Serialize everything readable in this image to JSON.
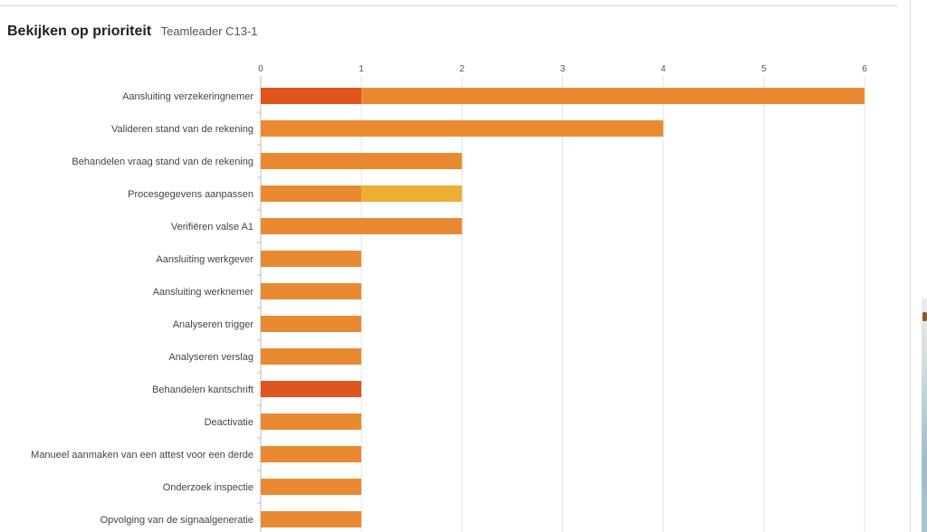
{
  "header": {
    "title": "Bekijken op prioriteit",
    "subtitle": "Teamleader C13-1"
  },
  "chart_data": {
    "type": "bar",
    "orientation": "horizontal",
    "stacked": true,
    "xlim": [
      0,
      6
    ],
    "x_ticks": [
      "0",
      "1",
      "2",
      "3",
      "4",
      "5",
      "6"
    ],
    "grid": true,
    "legend": "none",
    "categories": [
      "Aansluiting verzekeringnemer",
      "Valideren stand van de rekening",
      "Behandelen vraag stand van de rekening",
      "Procesgegevens aanpassen",
      "Verifiëren valse A1",
      "Aansluiting werkgever",
      "Aansluiting werknemer",
      "Analyseren trigger",
      "Analyseren verslag",
      "Behandelen kantschrift",
      "Deactivatie",
      "Manueel aanmaken van een attest voor een derde",
      "Onderzoek inspectie",
      "Opvolging van de signaalgeneratie"
    ],
    "series": [
      {
        "color": "#e0541e",
        "values": [
          1,
          0,
          0,
          0,
          0,
          0,
          0,
          0,
          0,
          1,
          0,
          0,
          0,
          0
        ]
      },
      {
        "color": "#e98a33",
        "values": [
          5,
          4,
          2,
          1,
          2,
          1,
          1,
          1,
          1,
          0,
          1,
          1,
          1,
          1
        ]
      },
      {
        "color": "#ecae33",
        "values": [
          0,
          0,
          0,
          1,
          0,
          0,
          0,
          0,
          0,
          0,
          0,
          0,
          0,
          0
        ]
      }
    ]
  }
}
